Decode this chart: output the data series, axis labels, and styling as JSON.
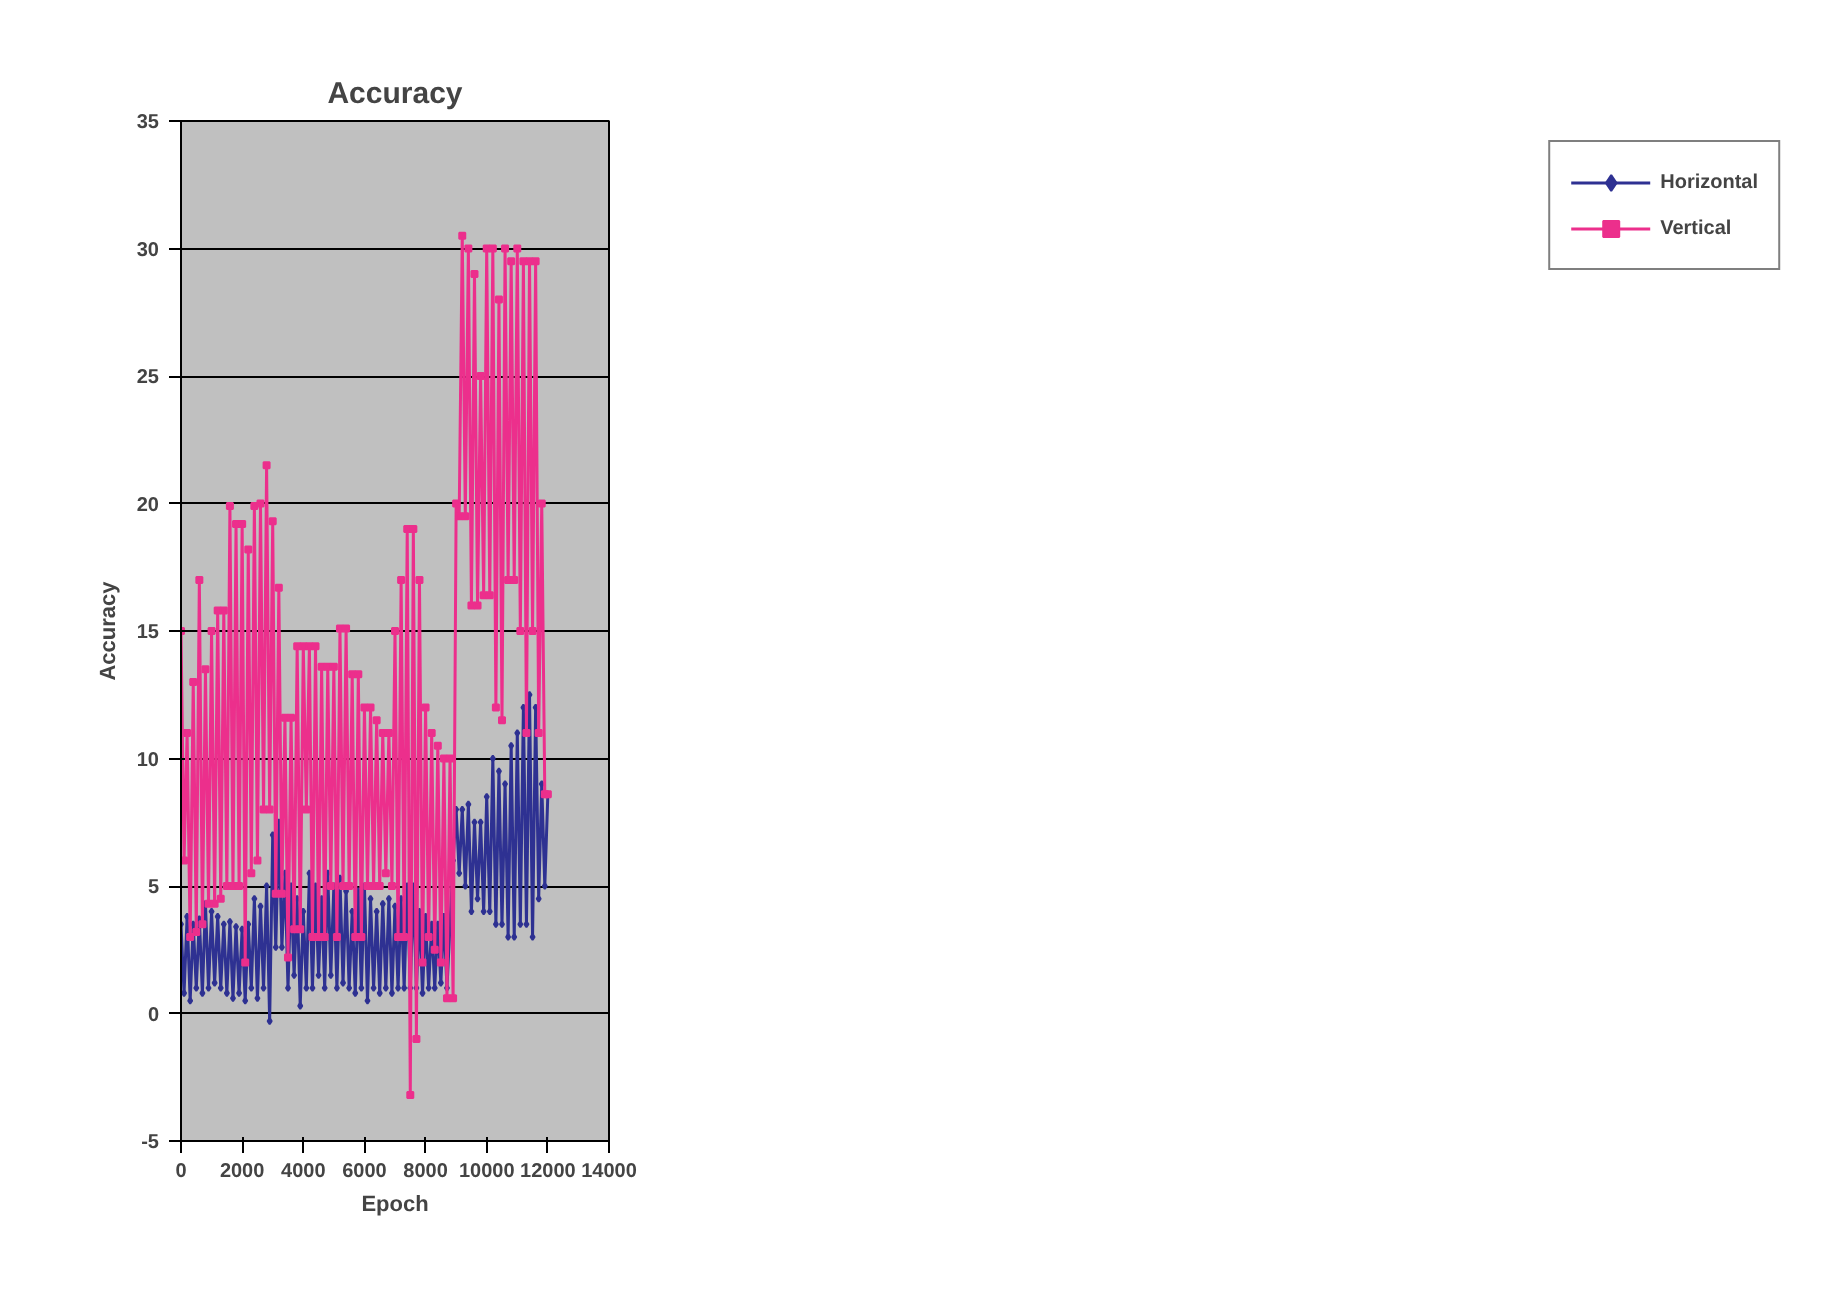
{
  "chart_data": {
    "type": "line",
    "title": "Accuracy",
    "xlabel": "Epoch",
    "ylabel": "Accuracy",
    "x": [
      0,
      100,
      200,
      300,
      400,
      500,
      600,
      700,
      800,
      900,
      1000,
      1100,
      1200,
      1300,
      1400,
      1500,
      1600,
      1700,
      1800,
      1900,
      2000,
      2100,
      2200,
      2300,
      2400,
      2500,
      2600,
      2700,
      2800,
      2900,
      3000,
      3100,
      3200,
      3300,
      3400,
      3500,
      3600,
      3700,
      3800,
      3900,
      4000,
      4100,
      4200,
      4300,
      4400,
      4500,
      4600,
      4700,
      4800,
      4900,
      5000,
      5100,
      5200,
      5300,
      5400,
      5500,
      5600,
      5700,
      5800,
      5900,
      6000,
      6100,
      6200,
      6300,
      6400,
      6500,
      6600,
      6700,
      6800,
      6900,
      7000,
      7100,
      7200,
      7300,
      7400,
      7500,
      7600,
      7700,
      7800,
      7900,
      8000,
      8100,
      8200,
      8300,
      8400,
      8500,
      8600,
      8700,
      8800,
      8900,
      9000,
      9100,
      9200,
      9300,
      9400,
      9500,
      9600,
      9700,
      9800,
      9900,
      10000,
      10100,
      10200,
      10300,
      10400,
      10500,
      10600,
      10700,
      10800,
      10900,
      11000,
      11100,
      11200,
      11300,
      11400,
      11500,
      11600,
      11700,
      11800,
      11900,
      12000
    ],
    "series": [
      {
        "name": "Horizontal",
        "color": "#2e3192",
        "marker": "diamond",
        "values": [
          3.5,
          0.8,
          3.8,
          0.5,
          3.5,
          1,
          3.7,
          0.8,
          4.3,
          1,
          4,
          1.2,
          3.8,
          1,
          3.5,
          0.8,
          3.6,
          0.6,
          3.4,
          0.8,
          3.3,
          0.5,
          3.5,
          1,
          4.5,
          0.6,
          4.2,
          1,
          5,
          -0.3,
          7,
          2.6,
          7.5,
          2.6,
          5.5,
          1,
          5,
          1.5,
          4.5,
          0.3,
          4,
          1,
          5.5,
          1,
          5,
          1.5,
          4.5,
          1,
          5.5,
          1.5,
          5,
          1,
          5.3,
          1.2,
          4.8,
          1,
          4,
          0.8,
          4.8,
          1,
          5,
          0.5,
          4.5,
          1,
          4,
          0.8,
          4.3,
          1,
          4.5,
          0.8,
          4.2,
          1,
          4.5,
          1,
          5,
          1,
          5,
          1,
          4,
          0.8,
          3.8,
          1,
          3.5,
          1,
          3.5,
          1.2,
          3.8,
          1,
          3.5,
          6,
          8,
          5.5,
          8,
          5,
          8.2,
          4,
          7.5,
          4.5,
          7.5,
          4,
          8.5,
          4,
          10,
          3.5,
          9.5,
          3.5,
          9,
          3,
          10.5,
          3,
          11,
          3.5,
          12,
          3.5,
          12.5,
          3,
          12,
          4.5,
          9,
          5,
          8.6
        ]
      },
      {
        "name": "Vertical",
        "color": "#ec2f8c",
        "marker": "square",
        "values": [
          15,
          6,
          11,
          3,
          13,
          3.2,
          17,
          3.5,
          13.5,
          4.3,
          15,
          4.3,
          15.8,
          4.5,
          15.8,
          5,
          19.9,
          5,
          19.2,
          5,
          19.2,
          2,
          18.2,
          5.5,
          19.9,
          6,
          20,
          8,
          21.5,
          8,
          19.3,
          4.7,
          16.7,
          4.7,
          11.6,
          2.2,
          11.6,
          3.3,
          14.4,
          3.3,
          14.4,
          8,
          14.4,
          3,
          14.4,
          3,
          13.6,
          3,
          13.6,
          5,
          13.6,
          3,
          15.1,
          5,
          15.1,
          5,
          13.3,
          3,
          13.3,
          3,
          12,
          5,
          12,
          5,
          11.5,
          5,
          11,
          5.5,
          11,
          5,
          15,
          3,
          17,
          3,
          19,
          -3.2,
          19,
          -1,
          17,
          2,
          12,
          3,
          11,
          2.5,
          10.5,
          2,
          10,
          0.6,
          10,
          0.6,
          20,
          19.5,
          30.5,
          19.5,
          30,
          16,
          29,
          16,
          25,
          16.4,
          30,
          16.4,
          30,
          12,
          28,
          11.5,
          30,
          17,
          29.5,
          17,
          30,
          15,
          29.5,
          11,
          29.5,
          15,
          29.5,
          11,
          20,
          8.6,
          8.6
        ]
      }
    ],
    "xlim": [
      0,
      14000
    ],
    "xticks": [
      0,
      2000,
      4000,
      6000,
      8000,
      10000,
      12000,
      14000
    ],
    "ylim": [
      -5,
      35
    ],
    "yticks": [
      -5,
      0,
      5,
      10,
      15,
      20,
      25,
      30,
      35
    ],
    "grid": "y",
    "legend": "right",
    "line_style": "solid"
  }
}
